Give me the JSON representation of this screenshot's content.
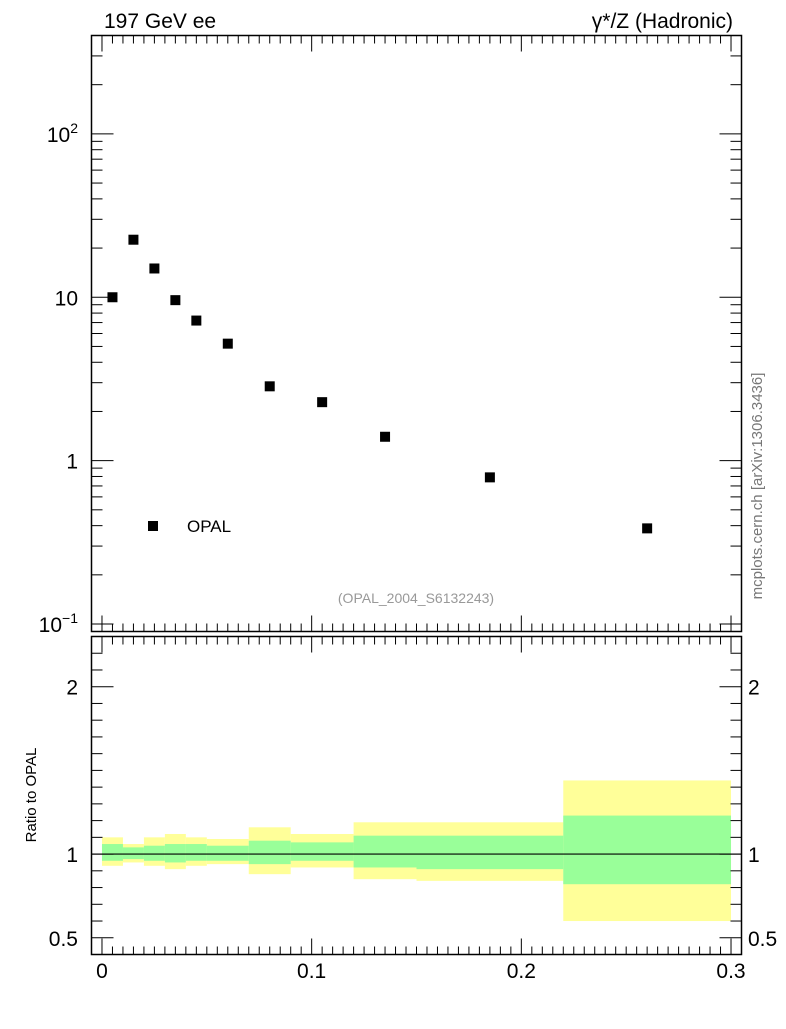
{
  "header": {
    "left": "197 GeV ee",
    "right": "γ*/Z (Hadronic)"
  },
  "side_label": "mcplots.cern.ch [arXiv:1306.3436]",
  "analysis_tag": "(OPAL_2004_S6132243)",
  "legend": {
    "label": "OPAL"
  },
  "ratio_ylabel": "Ratio to OPAL",
  "chart_data": [
    {
      "type": "scatter",
      "panel": "main",
      "yscale": "log",
      "xlim": [
        -0.005,
        0.305
      ],
      "ylim": [
        0.09,
        400
      ],
      "y_ticks": [
        {
          "label_base": "10",
          "label_exp": "−1",
          "value": 0.1
        },
        {
          "label_base": "1",
          "label_exp": "",
          "value": 1
        },
        {
          "label_base": "10",
          "label_exp": "",
          "value": 10
        },
        {
          "label_base": "10",
          "label_exp": "2",
          "value": 100
        }
      ],
      "series": [
        {
          "name": "OPAL",
          "color": "#000000",
          "x": [
            0.005,
            0.015,
            0.025,
            0.035,
            0.045,
            0.06,
            0.08,
            0.105,
            0.135,
            0.185,
            0.26
          ],
          "y": [
            10.0,
            22.5,
            15.0,
            9.6,
            7.2,
            5.2,
            2.85,
            2.28,
            1.4,
            0.79,
            0.385
          ]
        }
      ]
    },
    {
      "type": "area",
      "panel": "ratio",
      "xlim": [
        -0.005,
        0.305
      ],
      "ylim": [
        0.4,
        2.3
      ],
      "x_ticks": [
        {
          "value": 0,
          "label": "0"
        },
        {
          "value": 0.1,
          "label": "0.1"
        },
        {
          "value": 0.2,
          "label": "0.2"
        },
        {
          "value": 0.3,
          "label": "0.3"
        }
      ],
      "y_ticks": [
        {
          "value": 0.5,
          "label": "0.5"
        },
        {
          "value": 1,
          "label": "1"
        },
        {
          "value": 2,
          "label": "2"
        }
      ],
      "bins": [
        {
          "x0": 0.0,
          "x1": 0.01,
          "stat_lo": 0.96,
          "stat_hi": 1.06,
          "tot_lo": 0.93,
          "tot_hi": 1.1
        },
        {
          "x0": 0.01,
          "x1": 0.02,
          "stat_lo": 0.97,
          "stat_hi": 1.04,
          "tot_lo": 0.95,
          "tot_hi": 1.06
        },
        {
          "x0": 0.02,
          "x1": 0.03,
          "stat_lo": 0.96,
          "stat_hi": 1.05,
          "tot_lo": 0.93,
          "tot_hi": 1.1
        },
        {
          "x0": 0.03,
          "x1": 0.04,
          "stat_lo": 0.95,
          "stat_hi": 1.06,
          "tot_lo": 0.91,
          "tot_hi": 1.12
        },
        {
          "x0": 0.04,
          "x1": 0.05,
          "stat_lo": 0.96,
          "stat_hi": 1.06,
          "tot_lo": 0.93,
          "tot_hi": 1.1
        },
        {
          "x0": 0.05,
          "x1": 0.07,
          "stat_lo": 0.96,
          "stat_hi": 1.05,
          "tot_lo": 0.94,
          "tot_hi": 1.09
        },
        {
          "x0": 0.07,
          "x1": 0.09,
          "stat_lo": 0.94,
          "stat_hi": 1.08,
          "tot_lo": 0.88,
          "tot_hi": 1.16
        },
        {
          "x0": 0.09,
          "x1": 0.12,
          "stat_lo": 0.96,
          "stat_hi": 1.07,
          "tot_lo": 0.92,
          "tot_hi": 1.12
        },
        {
          "x0": 0.12,
          "x1": 0.15,
          "stat_lo": 0.92,
          "stat_hi": 1.11,
          "tot_lo": 0.85,
          "tot_hi": 1.19
        },
        {
          "x0": 0.15,
          "x1": 0.22,
          "stat_lo": 0.91,
          "stat_hi": 1.11,
          "tot_lo": 0.84,
          "tot_hi": 1.19
        },
        {
          "x0": 0.22,
          "x1": 0.3,
          "stat_lo": 0.82,
          "stat_hi": 1.23,
          "tot_lo": 0.6,
          "tot_hi": 1.44
        }
      ],
      "colors": {
        "stat": "#99ff99",
        "total": "#ffff99",
        "reference": "#000000"
      },
      "reference_line": 1
    }
  ]
}
